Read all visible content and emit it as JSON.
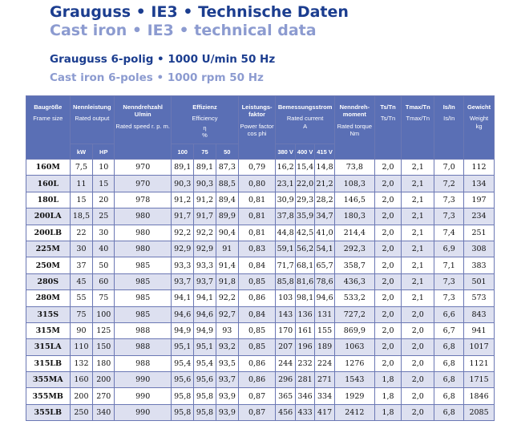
{
  "title_de": "Grauguss • IE3 • Technische Daten",
  "title_en": "Cast iron • IE3 • technical data",
  "subtitle_de": "Grauguss 6-polig • 1000 U/min 50 Hz",
  "subtitle_en": "Cast iron 6-poles • 1000 rpm 50 Hz",
  "colors": {
    "header_bg": "#5a6fb5",
    "title": "#1b3d8f",
    "title_light": "#8c9bd0",
    "row_alt": "#dde0f0"
  },
  "headers": {
    "frame_de": "Baugröße",
    "frame_en": "Frame size",
    "output_de": "Nennleistung",
    "output_en": "Rated output",
    "speed_de": "Nenndrehzahl U/min",
    "speed_en": "Rated speed r. p. m.",
    "eff_de": "Effizienz",
    "eff_en": "Efficiency",
    "eff_symbol": "η",
    "eff_unit": "%",
    "pf_de": "Leistungs-faktor",
    "pf_en": "Power factor cos phi",
    "current_de": "Bemessungsstrom",
    "current_en": "Rated current",
    "current_unit": "A",
    "torque_de": "Nenndreh-moment",
    "torque_en": "Rated torque",
    "torque_unit": "Nm",
    "tstn_de": "Ts/Tn",
    "tstn_en": "Ts/Tn",
    "tmaxtn_de": "Tmax/Tn",
    "tmaxtn_en": "Tmax/Tn",
    "isin_de": "Is/In",
    "isin_en": "Is/In",
    "weight_de": "Gewicht",
    "weight_en": "Weight",
    "weight_unit": "kg",
    "kw": "kW",
    "hp": "HP",
    "eff100": "100",
    "eff75": "75",
    "eff50": "50",
    "v380": "380 V",
    "v400": "400 V",
    "v415": "415 V"
  },
  "rows": [
    [
      "160M",
      "7,5",
      "10",
      "970",
      "89,1",
      "89,1",
      "87,3",
      "0,79",
      "16,2",
      "15,4",
      "14,8",
      "73,8",
      "2,0",
      "2,1",
      "7,0",
      "112"
    ],
    [
      "160L",
      "11",
      "15",
      "970",
      "90,3",
      "90,3",
      "88,5",
      "0,80",
      "23,1",
      "22,0",
      "21,2",
      "108,3",
      "2,0",
      "2,1",
      "7,2",
      "134"
    ],
    [
      "180L",
      "15",
      "20",
      "978",
      "91,2",
      "91,2",
      "89,4",
      "0,81",
      "30,9",
      "29,3",
      "28,2",
      "146,5",
      "2,0",
      "2,1",
      "7,3",
      "197"
    ],
    [
      "200LA",
      "18,5",
      "25",
      "980",
      "91,7",
      "91,7",
      "89,9",
      "0,81",
      "37,8",
      "35,9",
      "34,7",
      "180,3",
      "2,0",
      "2,1",
      "7,3",
      "234"
    ],
    [
      "200LB",
      "22",
      "30",
      "980",
      "92,2",
      "92,2",
      "90,4",
      "0,81",
      "44,8",
      "42,5",
      "41,0",
      "214,4",
      "2,0",
      "2,1",
      "7,4",
      "251"
    ],
    [
      "225M",
      "30",
      "40",
      "980",
      "92,9",
      "92,9",
      "91",
      "0,83",
      "59,1",
      "56,2",
      "54,1",
      "292,3",
      "2,0",
      "2,1",
      "6,9",
      "308"
    ],
    [
      "250M",
      "37",
      "50",
      "985",
      "93,3",
      "93,3",
      "91,4",
      "0,84",
      "71,7",
      "68,1",
      "65,7",
      "358,7",
      "2,0",
      "2,1",
      "7,1",
      "383"
    ],
    [
      "280S",
      "45",
      "60",
      "985",
      "93,7",
      "93,7",
      "91,8",
      "0,85",
      "85,8",
      "81,6",
      "78,6",
      "436,3",
      "2,0",
      "2,1",
      "7,3",
      "501"
    ],
    [
      "280M",
      "55",
      "75",
      "985",
      "94,1",
      "94,1",
      "92,2",
      "0,86",
      "103",
      "98,1",
      "94,6",
      "533,2",
      "2,0",
      "2,1",
      "7,3",
      "573"
    ],
    [
      "315S",
      "75",
      "100",
      "985",
      "94,6",
      "94,6",
      "92,7",
      "0,84",
      "143",
      "136",
      "131",
      "727,2",
      "2,0",
      "2,0",
      "6,6",
      "843"
    ],
    [
      "315M",
      "90",
      "125",
      "988",
      "94,9",
      "94,9",
      "93",
      "0,85",
      "170",
      "161",
      "155",
      "869,9",
      "2,0",
      "2,0",
      "6,7",
      "941"
    ],
    [
      "315LA",
      "110",
      "150",
      "988",
      "95,1",
      "95,1",
      "93,2",
      "0,85",
      "207",
      "196",
      "189",
      "1063",
      "2,0",
      "2,0",
      "6,8",
      "1017"
    ],
    [
      "315LB",
      "132",
      "180",
      "988",
      "95,4",
      "95,4",
      "93,5",
      "0,86",
      "244",
      "232",
      "224",
      "1276",
      "2,0",
      "2,0",
      "6,8",
      "1121"
    ],
    [
      "355MA",
      "160",
      "200",
      "990",
      "95,6",
      "95,6",
      "93,7",
      "0,86",
      "296",
      "281",
      "271",
      "1543",
      "1,8",
      "2,0",
      "6,8",
      "1715"
    ],
    [
      "355MB",
      "200",
      "270",
      "990",
      "95,8",
      "95,8",
      "93,9",
      "0,87",
      "365",
      "346",
      "334",
      "1929",
      "1,8",
      "2,0",
      "6,8",
      "1846"
    ],
    [
      "355LB",
      "250",
      "340",
      "990",
      "95,8",
      "95,8",
      "93,9",
      "0,87",
      "456",
      "433",
      "417",
      "2412",
      "1,8",
      "2,0",
      "6,8",
      "2085"
    ]
  ]
}
